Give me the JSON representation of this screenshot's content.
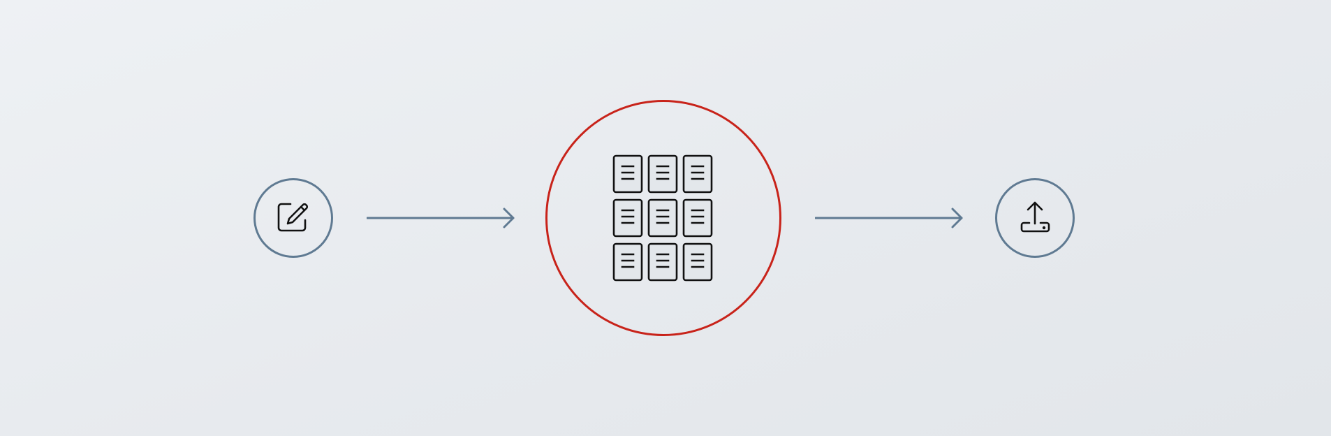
{
  "diagram": {
    "type": "flow",
    "description_nodes": [
      {
        "id": "edit",
        "icon": "edit-icon",
        "highlight": false
      },
      {
        "id": "documents",
        "icon": "document-grid-icon",
        "highlight": true
      },
      {
        "id": "upload",
        "icon": "upload-icon",
        "highlight": false
      }
    ],
    "edges": [
      {
        "from": "edit",
        "to": "documents"
      },
      {
        "from": "documents",
        "to": "upload"
      }
    ],
    "colors": {
      "node_border": "#5f7a92",
      "highlight_border": "#c8231a",
      "arrow": "#5f7a92",
      "icon_stroke": "#111111",
      "document_fill": "#e3e7eb"
    },
    "document_grid": {
      "rows": 3,
      "columns": 3
    }
  }
}
